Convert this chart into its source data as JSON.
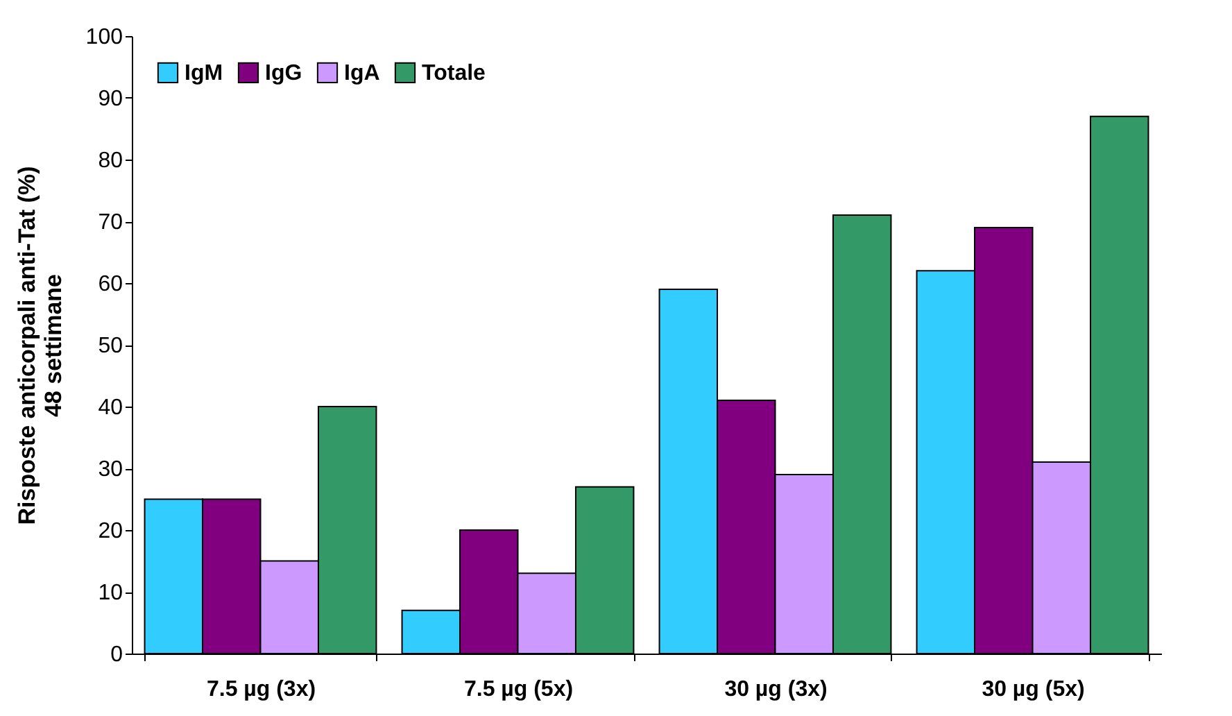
{
  "chart_data": {
    "type": "bar",
    "ylabel": "Risposte anticorpali anti-Tat (%)\n48 settimane",
    "categories": [
      "7.5 µg (3x)",
      "7.5 µg (5x)",
      "30 µg (3x)",
      "30 µg (5x)"
    ],
    "series": [
      {
        "name": "IgM",
        "color": "#33ccff",
        "values": [
          25,
          7,
          59,
          62
        ]
      },
      {
        "name": "IgG",
        "color": "#800080",
        "values": [
          25,
          20,
          41,
          69
        ]
      },
      {
        "name": "IgA",
        "color": "#cc99ff",
        "values": [
          15,
          13,
          29,
          31
        ]
      },
      {
        "name": "Totale",
        "color": "#339966",
        "values": [
          40,
          27,
          71,
          87
        ]
      }
    ],
    "ylim": [
      0,
      100
    ],
    "yticks": [
      0,
      10,
      20,
      30,
      40,
      50,
      60,
      70,
      80,
      90,
      100
    ],
    "grid": false,
    "legend": "top left"
  }
}
